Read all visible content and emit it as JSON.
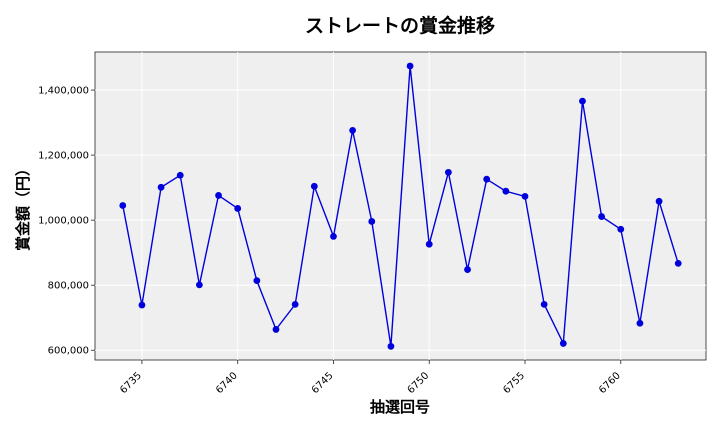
{
  "chart_data": {
    "type": "line",
    "title": "ストレートの賞金推移",
    "xlabel": "抽選回号",
    "ylabel": "賞金額（円）",
    "xlim": [
      6732.55,
      6764.45
    ],
    "ylim": [
      570000,
      1517000
    ],
    "xticks": [
      6735,
      6740,
      6745,
      6750,
      6755,
      6760
    ],
    "xtick_labels": [
      "6735",
      "6740",
      "6745",
      "6750",
      "6755",
      "6760"
    ],
    "yticks": [
      600000,
      800000,
      1000000,
      1200000,
      1400000
    ],
    "ytick_labels": [
      "600,000",
      "800,000",
      "1,000,000",
      "1,200,000",
      "1,400,000"
    ],
    "grid": true,
    "series": [
      {
        "color": "#0000dd",
        "x": [
          6734,
          6735,
          6736,
          6737,
          6738,
          6739,
          6740,
          6741,
          6742,
          6743,
          6744,
          6745,
          6746,
          6747,
          6748,
          6749,
          6750,
          6751,
          6752,
          6753,
          6754,
          6755,
          6756,
          6757,
          6758,
          6759,
          6760,
          6761,
          6762,
          6763
        ],
        "values": [
          1045000,
          739000,
          1101000,
          1138000,
          801000,
          1076000,
          1036000,
          814000,
          664000,
          741000,
          1104000,
          950000,
          1276000,
          996000,
          612000,
          1474000,
          926000,
          1147000,
          848000,
          1126000,
          1089000,
          1073000,
          741000,
          621000,
          1366000,
          1011000,
          972000,
          683000,
          1058000,
          867000
        ]
      }
    ]
  }
}
